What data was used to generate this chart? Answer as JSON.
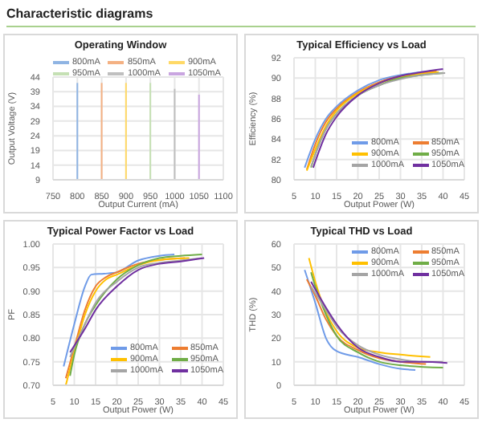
{
  "chart_data": [
    {
      "type": "line",
      "title": "Operating Window",
      "annotations": [
        "Characteristic diagrams"
      ],
      "xlabel": "Output Current (mA)",
      "ylabel": "Output Voltage (V)",
      "xlim": [
        750,
        1100
      ],
      "xticks": [
        750,
        800,
        850,
        900,
        950,
        1000,
        1050,
        1100
      ],
      "ylim": [
        9,
        44
      ],
      "yticks": [
        9,
        14,
        19,
        24,
        29,
        34,
        39,
        44
      ],
      "grid": true,
      "legend": "top",
      "marker": "none",
      "series": [
        {
          "name": "800mA",
          "color": "#8fb4e3",
          "x": [
            800,
            800
          ],
          "values": [
            9,
            42
          ]
        },
        {
          "name": "850mA",
          "color": "#f4b183",
          "x": [
            850,
            850
          ],
          "values": [
            9,
            42
          ]
        },
        {
          "name": "900mA",
          "color": "#ffd966",
          "x": [
            900,
            900
          ],
          "values": [
            9,
            42
          ]
        },
        {
          "name": "950mA",
          "color": "#c5e0b4",
          "x": [
            950,
            950
          ],
          "values": [
            9,
            42
          ]
        },
        {
          "name": "1000mA",
          "color": "#bfbfbf",
          "x": [
            1000,
            1000
          ],
          "values": [
            9,
            40
          ]
        },
        {
          "name": "1050mA",
          "color": "#c9a5e0",
          "x": [
            1050,
            1050
          ],
          "values": [
            9,
            38
          ]
        }
      ]
    },
    {
      "type": "line",
      "title": "Typical Efficiency vs Load",
      "xlabel": "Output Power (W)",
      "ylabel": "Efficiency (%)",
      "xlim": [
        5,
        45
      ],
      "xticks": [
        5,
        10,
        15,
        20,
        25,
        30,
        35,
        40,
        45
      ],
      "ylim": [
        80,
        92
      ],
      "yticks": [
        80,
        82,
        84,
        86,
        88,
        90,
        92
      ],
      "grid": true,
      "legend": "bottom right",
      "marker": "none",
      "series": [
        {
          "name": "800mA",
          "color": "#6f9be8",
          "x": [
            7.5,
            10,
            12.5,
            15,
            20,
            25,
            30,
            35,
            38
          ],
          "values": [
            81.2,
            84,
            86,
            87.2,
            88.8,
            89.8,
            90.3,
            90.6,
            90.7
          ]
        },
        {
          "name": "850mA",
          "color": "#ed7d31",
          "x": [
            8,
            10,
            12.5,
            15,
            20,
            25,
            30,
            35,
            38.5
          ],
          "values": [
            81,
            83.5,
            85.7,
            87,
            88.6,
            89.6,
            90.2,
            90.5,
            90.7
          ]
        },
        {
          "name": "900mA",
          "color": "#ffc000",
          "x": [
            8,
            10,
            12.5,
            15,
            20,
            25,
            30,
            35,
            39
          ],
          "values": [
            80.9,
            83,
            85.3,
            86.8,
            88.5,
            89.5,
            90.1,
            90.4,
            90.6
          ]
        },
        {
          "name": "950mA",
          "color": "#70ad47",
          "x": [
            9,
            10,
            12.5,
            15,
            20,
            25,
            30,
            35,
            40
          ],
          "values": [
            81.2,
            82.5,
            85,
            86.5,
            88.3,
            89.3,
            90,
            90.3,
            90.5
          ]
        },
        {
          "name": "1000mA",
          "color": "#a5a5a5",
          "x": [
            9,
            12.5,
            15,
            20,
            25,
            30,
            35,
            40.5
          ],
          "values": [
            81.3,
            85,
            86.5,
            88.3,
            89.3,
            89.9,
            90.3,
            90.5
          ]
        },
        {
          "name": "1050mA",
          "color": "#7030a0",
          "x": [
            9.5,
            12.5,
            15,
            20,
            25,
            30,
            35,
            40
          ],
          "values": [
            81.2,
            84.5,
            86.2,
            88.3,
            89.5,
            90.2,
            90.6,
            90.9
          ]
        }
      ]
    },
    {
      "type": "line",
      "title": "Typical Power Factor vs Load",
      "xlabel": "Output Power (W)",
      "ylabel": "PF",
      "xlim": [
        5,
        45
      ],
      "xticks": [
        5,
        10,
        15,
        20,
        25,
        30,
        35,
        40,
        45
      ],
      "ylim": [
        0.7,
        1
      ],
      "yticks": [
        {
          "value": 0.7,
          "label": "0.70"
        },
        0.75,
        {
          "value": 0.8,
          "label": "0.80"
        },
        0.85,
        {
          "value": 0.9,
          "label": "0.90"
        },
        0.95,
        {
          "value": 1,
          "label": "1.00"
        }
      ],
      "grid": true,
      "legend": "bottom right",
      "marker": "none",
      "series": [
        {
          "name": "800mA",
          "color": "#6f9be8",
          "x": [
            7.5,
            10,
            12.5,
            14,
            17,
            20,
            25,
            30,
            33.5
          ],
          "values": [
            0.74,
            0.83,
            0.91,
            0.935,
            0.937,
            0.94,
            0.965,
            0.975,
            0.978
          ]
        },
        {
          "name": "850mA",
          "color": "#ed7d31",
          "x": [
            8,
            10,
            12.5,
            15,
            17.5,
            20,
            25,
            30,
            36
          ],
          "values": [
            0.715,
            0.78,
            0.86,
            0.91,
            0.93,
            0.94,
            0.958,
            0.966,
            0.97
          ]
        },
        {
          "name": "900mA",
          "color": "#ffc000",
          "x": [
            8,
            10,
            12.5,
            15,
            17.5,
            20,
            25,
            30,
            37
          ],
          "values": [
            0.7,
            0.77,
            0.85,
            0.9,
            0.925,
            0.935,
            0.955,
            0.966,
            0.97
          ]
        },
        {
          "name": "950mA",
          "color": "#70ad47",
          "x": [
            9,
            10,
            12.5,
            15,
            20,
            25,
            30,
            35,
            40
          ],
          "values": [
            0.72,
            0.765,
            0.83,
            0.87,
            0.925,
            0.955,
            0.97,
            0.975,
            0.978
          ]
        },
        {
          "name": "1000mA",
          "color": "#a5a5a5",
          "x": [
            9,
            12.5,
            15,
            20,
            25,
            30,
            35,
            40
          ],
          "values": [
            0.76,
            0.83,
            0.875,
            0.92,
            0.95,
            0.96,
            0.965,
            0.97
          ]
        },
        {
          "name": "1050mA",
          "color": "#7030a0",
          "x": [
            9,
            12.5,
            15,
            20,
            25,
            30,
            35,
            40.5
          ],
          "values": [
            0.77,
            0.82,
            0.86,
            0.91,
            0.945,
            0.958,
            0.963,
            0.97
          ]
        }
      ]
    },
    {
      "type": "line",
      "title": "Typical THD vs Load",
      "xlabel": "Output Power (W)",
      "ylabel": "THD (%)",
      "xlim": [
        5,
        45
      ],
      "xticks": [
        5,
        10,
        15,
        20,
        25,
        30,
        35,
        40,
        45
      ],
      "ylim": [
        0,
        60
      ],
      "yticks": [
        0,
        10,
        20,
        30,
        40,
        50,
        60
      ],
      "grid": true,
      "legend": "top right",
      "marker": "none",
      "series": [
        {
          "name": "800mA",
          "color": "#6f9be8",
          "x": [
            7.5,
            10,
            12.5,
            15,
            20,
            25,
            30,
            33.5
          ],
          "values": [
            49,
            35,
            20,
            14.5,
            12,
            9,
            7,
            6.5
          ]
        },
        {
          "name": "850mA",
          "color": "#ed7d31",
          "x": [
            8,
            10,
            12.5,
            15,
            20,
            25,
            30,
            36
          ],
          "values": [
            45,
            38,
            28,
            21,
            15,
            11.5,
            10,
            9
          ]
        },
        {
          "name": "900mA",
          "color": "#ffc000",
          "x": [
            8.5,
            10,
            12.5,
            15,
            20,
            25,
            30,
            37
          ],
          "values": [
            54,
            44,
            31,
            23,
            16,
            14,
            13,
            12
          ]
        },
        {
          "name": "950mA",
          "color": "#70ad47",
          "x": [
            9,
            10,
            12.5,
            15,
            20,
            25,
            30,
            40
          ],
          "values": [
            48,
            42,
            30,
            21,
            14,
            10,
            8.5,
            7.5
          ]
        },
        {
          "name": "1000mA",
          "color": "#a5a5a5",
          "x": [
            9,
            12.5,
            15,
            20,
            25,
            30,
            35,
            40
          ],
          "values": [
            42,
            32,
            25,
            17,
            13,
            11,
            10,
            10
          ]
        },
        {
          "name": "1050mA",
          "color": "#7030a0",
          "x": [
            9,
            12.5,
            15,
            20,
            25,
            30,
            35,
            41
          ],
          "values": [
            44,
            33,
            26,
            16,
            12,
            10,
            10,
            9.5
          ]
        }
      ]
    }
  ]
}
